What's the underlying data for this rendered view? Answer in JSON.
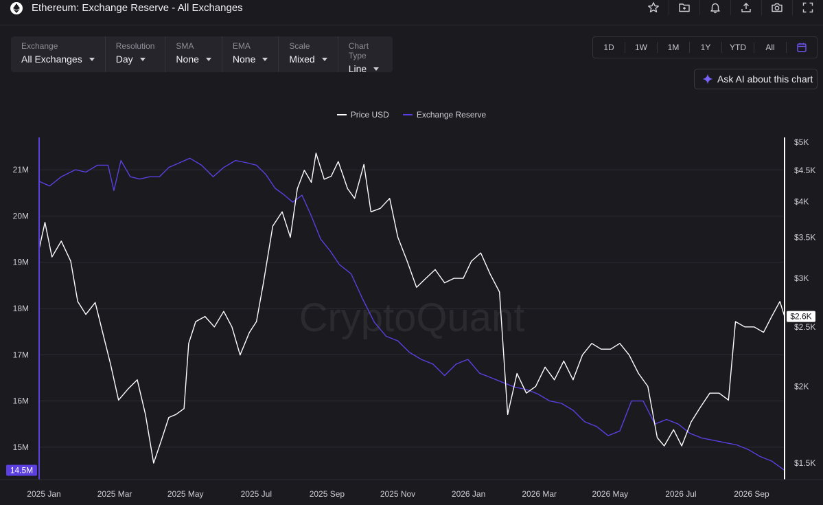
{
  "header": {
    "title": "Ethereum: Exchange Reserve - All Exchanges",
    "icons": [
      "star-icon",
      "folder-plus-icon",
      "bell-icon",
      "upload-icon",
      "camera-icon",
      "fullscreen-icon"
    ]
  },
  "controls": [
    {
      "label": "Exchange",
      "value": "All Exchanges"
    },
    {
      "label": "Resolution",
      "value": "Day"
    },
    {
      "label": "SMA",
      "value": "None"
    },
    {
      "label": "EMA",
      "value": "None"
    },
    {
      "label": "Scale",
      "value": "Mixed"
    },
    {
      "label": "Chart Type",
      "value": "Line"
    }
  ],
  "ranges": [
    "1D",
    "1W",
    "1M",
    "1Y",
    "YTD",
    "All"
  ],
  "ask_ai": "Ask AI about this chart",
  "colors": {
    "background": "#1b1a1f",
    "price": "#ffffff",
    "reserve": "#5b3fe0",
    "accent": "#5b3fe0"
  },
  "chart_data": {
    "type": "line",
    "title": "",
    "legend": {
      "position": "top-center",
      "entries": [
        "Price USD",
        "Exchange Reserve"
      ]
    },
    "watermark": "CryptoQuant",
    "grid": true,
    "x_ticks": [
      "2025 Jan",
      "2025 Mar",
      "2025 May",
      "2025 Jul",
      "2025 Sep",
      "2025 Nov",
      "2026 Jan",
      "2026 Mar",
      "2026 May",
      "2026 Jul",
      "2026 Sep"
    ],
    "x_range": [
      "2025-01-01",
      "2026-10-01"
    ],
    "y_left": {
      "series": "Exchange Reserve",
      "ticks": [
        15000000,
        16000000,
        17000000,
        18000000,
        19000000,
        20000000,
        21000000
      ],
      "tick_labels": [
        "15M",
        "16M",
        "17M",
        "18M",
        "19M",
        "20M",
        "21M"
      ],
      "range": [
        14300000,
        21700000
      ],
      "last_value_label": "14.5M"
    },
    "y_right": {
      "series": "Price USD",
      "scale": "log",
      "ticks": [
        1500,
        2000,
        2500,
        3000,
        3500,
        4000,
        4500,
        5000
      ],
      "tick_labels": [
        "$1.5K",
        "$2K",
        "$2.5K",
        "$3K",
        "$3.5K",
        "$4K",
        "$4.5K",
        "$5K"
      ],
      "range": [
        1410,
        5090
      ],
      "last_value_label": "$2.6K"
    },
    "series": [
      {
        "name": "Price USD",
        "axis": "right",
        "color": "#ffffff",
        "points": [
          [
            "2025-01-01",
            3350
          ],
          [
            "2025-01-06",
            3700
          ],
          [
            "2025-01-12",
            3250
          ],
          [
            "2025-01-20",
            3450
          ],
          [
            "2025-01-28",
            3200
          ],
          [
            "2025-02-03",
            2750
          ],
          [
            "2025-02-10",
            2620
          ],
          [
            "2025-02-18",
            2740
          ],
          [
            "2025-02-26",
            2380
          ],
          [
            "2025-03-03",
            2180
          ],
          [
            "2025-03-10",
            1900
          ],
          [
            "2025-03-18",
            1980
          ],
          [
            "2025-03-26",
            2050
          ],
          [
            "2025-04-02",
            1800
          ],
          [
            "2025-04-09",
            1500
          ],
          [
            "2025-04-15",
            1620
          ],
          [
            "2025-04-22",
            1780
          ],
          [
            "2025-04-28",
            1800
          ],
          [
            "2025-05-05",
            1840
          ],
          [
            "2025-05-09",
            2350
          ],
          [
            "2025-05-15",
            2550
          ],
          [
            "2025-05-23",
            2600
          ],
          [
            "2025-05-31",
            2500
          ],
          [
            "2025-06-08",
            2650
          ],
          [
            "2025-06-15",
            2500
          ],
          [
            "2025-06-22",
            2250
          ],
          [
            "2025-06-30",
            2450
          ],
          [
            "2025-07-06",
            2550
          ],
          [
            "2025-07-12",
            2950
          ],
          [
            "2025-07-20",
            3650
          ],
          [
            "2025-07-28",
            3850
          ],
          [
            "2025-08-04",
            3500
          ],
          [
            "2025-08-10",
            4200
          ],
          [
            "2025-08-16",
            4500
          ],
          [
            "2025-08-22",
            4300
          ],
          [
            "2025-08-26",
            4800
          ],
          [
            "2025-09-02",
            4350
          ],
          [
            "2025-09-08",
            4400
          ],
          [
            "2025-09-14",
            4650
          ],
          [
            "2025-09-22",
            4200
          ],
          [
            "2025-09-28",
            4050
          ],
          [
            "2025-10-06",
            4600
          ],
          [
            "2025-10-12",
            3850
          ],
          [
            "2025-10-20",
            3900
          ],
          [
            "2025-10-28",
            4050
          ],
          [
            "2025-11-04",
            3500
          ],
          [
            "2025-11-12",
            3200
          ],
          [
            "2025-11-20",
            2900
          ],
          [
            "2025-11-28",
            3000
          ],
          [
            "2025-12-06",
            3100
          ],
          [
            "2025-12-14",
            2950
          ],
          [
            "2025-12-22",
            3000
          ],
          [
            "2025-12-30",
            3000
          ],
          [
            "2026-01-06",
            3200
          ],
          [
            "2026-01-14",
            3300
          ],
          [
            "2026-01-22",
            3050
          ],
          [
            "2026-01-30",
            2850
          ],
          [
            "2026-02-06",
            1800
          ],
          [
            "2026-02-14",
            2100
          ],
          [
            "2026-02-22",
            1950
          ],
          [
            "2026-03-02",
            2000
          ],
          [
            "2026-03-10",
            2150
          ],
          [
            "2026-03-18",
            2050
          ],
          [
            "2026-03-26",
            2200
          ],
          [
            "2026-04-03",
            2050
          ],
          [
            "2026-04-11",
            2250
          ],
          [
            "2026-04-19",
            2350
          ],
          [
            "2026-04-27",
            2300
          ],
          [
            "2026-05-05",
            2300
          ],
          [
            "2026-05-13",
            2350
          ],
          [
            "2026-05-21",
            2250
          ],
          [
            "2026-05-29",
            2100
          ],
          [
            "2026-06-06",
            2000
          ],
          [
            "2026-06-14",
            1650
          ],
          [
            "2026-06-20",
            1600
          ],
          [
            "2026-06-28",
            1700
          ],
          [
            "2026-07-05",
            1600
          ],
          [
            "2026-07-13",
            1750
          ],
          [
            "2026-07-21",
            1850
          ],
          [
            "2026-07-29",
            1950
          ],
          [
            "2026-08-06",
            1950
          ],
          [
            "2026-08-14",
            1900
          ],
          [
            "2026-08-20",
            2550
          ],
          [
            "2026-08-28",
            2500
          ],
          [
            "2026-09-05",
            2500
          ],
          [
            "2026-09-13",
            2450
          ],
          [
            "2026-09-20",
            2600
          ],
          [
            "2026-09-27",
            2750
          ],
          [
            "2026-10-01",
            2600
          ]
        ]
      },
      {
        "name": "Exchange Reserve",
        "axis": "left",
        "color": "#5b3fe0",
        "points": [
          [
            "2025-01-01",
            20750000
          ],
          [
            "2025-01-10",
            20650000
          ],
          [
            "2025-01-20",
            20850000
          ],
          [
            "2025-02-01",
            21000000
          ],
          [
            "2025-02-10",
            20950000
          ],
          [
            "2025-02-20",
            21100000
          ],
          [
            "2025-03-01",
            21100000
          ],
          [
            "2025-03-06",
            20550000
          ],
          [
            "2025-03-12",
            21200000
          ],
          [
            "2025-03-20",
            20850000
          ],
          [
            "2025-03-28",
            20800000
          ],
          [
            "2025-04-06",
            20850000
          ],
          [
            "2025-04-14",
            20850000
          ],
          [
            "2025-04-22",
            21050000
          ],
          [
            "2025-05-01",
            21150000
          ],
          [
            "2025-05-10",
            21250000
          ],
          [
            "2025-05-20",
            21100000
          ],
          [
            "2025-05-30",
            20850000
          ],
          [
            "2025-06-08",
            21050000
          ],
          [
            "2025-06-18",
            21200000
          ],
          [
            "2025-06-28",
            21150000
          ],
          [
            "2025-07-06",
            21100000
          ],
          [
            "2025-07-14",
            20900000
          ],
          [
            "2025-07-22",
            20600000
          ],
          [
            "2025-07-30",
            20450000
          ],
          [
            "2025-08-06",
            20300000
          ],
          [
            "2025-08-14",
            20450000
          ],
          [
            "2025-08-22",
            20000000
          ],
          [
            "2025-08-30",
            19500000
          ],
          [
            "2025-09-07",
            19250000
          ],
          [
            "2025-09-15",
            18950000
          ],
          [
            "2025-09-25",
            18750000
          ],
          [
            "2025-10-05",
            18200000
          ],
          [
            "2025-10-15",
            17700000
          ],
          [
            "2025-10-25",
            17400000
          ],
          [
            "2025-11-04",
            17300000
          ],
          [
            "2025-11-14",
            17050000
          ],
          [
            "2025-11-24",
            16900000
          ],
          [
            "2025-12-04",
            16800000
          ],
          [
            "2025-12-14",
            16550000
          ],
          [
            "2025-12-24",
            16800000
          ],
          [
            "2026-01-03",
            16900000
          ],
          [
            "2026-01-13",
            16600000
          ],
          [
            "2026-01-23",
            16500000
          ],
          [
            "2026-02-02",
            16400000
          ],
          [
            "2026-02-12",
            16300000
          ],
          [
            "2026-02-22",
            16250000
          ],
          [
            "2026-03-04",
            16150000
          ],
          [
            "2026-03-14",
            16000000
          ],
          [
            "2026-03-24",
            15950000
          ],
          [
            "2026-04-03",
            15800000
          ],
          [
            "2026-04-13",
            15550000
          ],
          [
            "2026-04-23",
            15450000
          ],
          [
            "2026-05-03",
            15250000
          ],
          [
            "2026-05-13",
            15350000
          ],
          [
            "2026-05-23",
            16000000
          ],
          [
            "2026-06-02",
            16000000
          ],
          [
            "2026-06-12",
            15500000
          ],
          [
            "2026-06-22",
            15600000
          ],
          [
            "2026-07-02",
            15500000
          ],
          [
            "2026-07-12",
            15300000
          ],
          [
            "2026-07-22",
            15200000
          ],
          [
            "2026-08-01",
            15150000
          ],
          [
            "2026-08-11",
            15100000
          ],
          [
            "2026-08-21",
            15050000
          ],
          [
            "2026-08-31",
            14950000
          ],
          [
            "2026-09-10",
            14800000
          ],
          [
            "2026-09-20",
            14700000
          ],
          [
            "2026-10-01",
            14500000
          ]
        ]
      }
    ]
  }
}
